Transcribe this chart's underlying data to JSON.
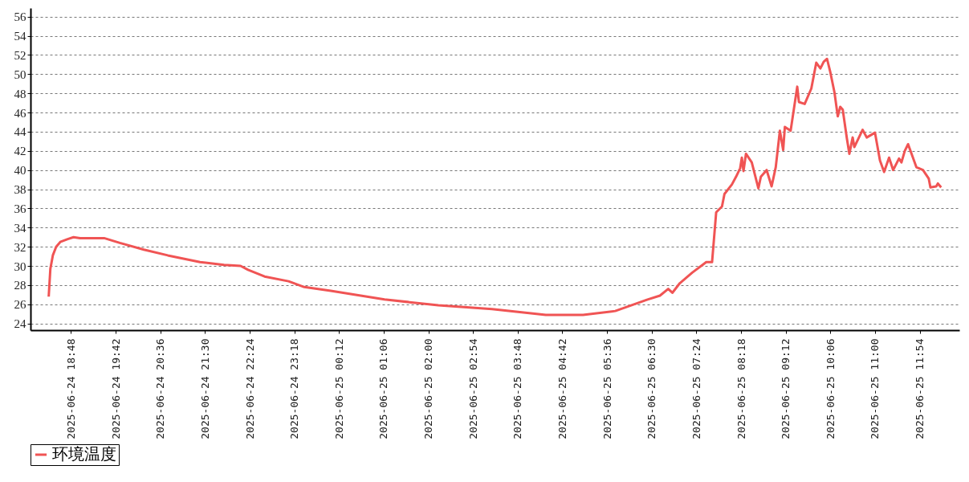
{
  "chart_data": {
    "type": "line",
    "x": [
      "2025-06-24T18:21",
      "2025-06-24T18:23",
      "2025-06-24T18:26",
      "2025-06-24T18:30",
      "2025-06-24T18:35",
      "2025-06-24T18:44",
      "2025-06-24T18:51",
      "2025-06-24T18:59",
      "2025-06-24T19:28",
      "2025-06-24T19:47",
      "2025-06-24T20:16",
      "2025-06-24T20:45",
      "2025-06-24T21:24",
      "2025-06-24T21:53",
      "2025-06-24T22:13",
      "2025-06-24T22:22",
      "2025-06-24T22:42",
      "2025-06-24T23:11",
      "2025-06-24T23:30",
      "2025-06-25T00:02",
      "2025-06-25T01:07",
      "2025-06-25T02:12",
      "2025-06-25T03:17",
      "2025-06-25T04:22",
      "2025-06-25T05:07",
      "2025-06-25T05:46",
      "2025-06-25T05:59",
      "2025-06-25T06:25",
      "2025-06-25T06:40",
      "2025-06-25T06:50",
      "2025-06-25T06:55",
      "2025-06-25T07:04",
      "2025-06-25T07:19",
      "2025-06-25T07:36",
      "2025-06-25T07:43",
      "2025-06-25T07:48",
      "2025-06-25T07:55",
      "2025-06-25T07:58",
      "2025-06-25T08:07",
      "2025-06-25T08:12",
      "2025-06-25T08:17",
      "2025-06-25T08:19",
      "2025-06-25T08:21",
      "2025-06-25T08:24",
      "2025-06-25T08:31",
      "2025-06-25T08:39",
      "2025-06-25T08:42",
      "2025-06-25T08:49",
      "2025-06-25T08:55",
      "2025-06-25T09:00",
      "2025-06-25T09:05",
      "2025-06-25T09:09",
      "2025-06-25T09:11",
      "2025-06-25T09:18",
      "2025-06-25T09:26",
      "2025-06-25T09:28",
      "2025-06-25T09:35",
      "2025-06-25T09:43",
      "2025-06-25T09:49",
      "2025-06-25T09:54",
      "2025-06-25T09:58",
      "2025-06-25T10:02",
      "2025-06-25T10:06",
      "2025-06-25T10:11",
      "2025-06-25T10:15",
      "2025-06-25T10:18",
      "2025-06-25T10:21",
      "2025-06-25T10:26",
      "2025-06-25T10:29",
      "2025-06-25T10:33",
      "2025-06-25T10:35",
      "2025-06-25T10:45",
      "2025-06-25T10:50",
      "2025-06-25T11:00",
      "2025-06-25T11:06",
      "2025-06-25T11:11",
      "2025-06-25T11:17",
      "2025-06-25T11:22",
      "2025-06-25T11:29",
      "2025-06-25T11:32",
      "2025-06-25T11:36",
      "2025-06-25T11:40",
      "2025-06-25T11:50",
      "2025-06-25T11:58",
      "2025-06-25T12:05",
      "2025-06-25T12:07",
      "2025-06-25T12:14",
      "2025-06-25T12:16",
      "2025-06-25T12:20"
    ],
    "series": [
      {
        "name": "环境温度",
        "color": "#f05454",
        "values": [
          26.8,
          29.7,
          31.1,
          32.0,
          32.5,
          32.8,
          33.0,
          32.9,
          32.9,
          32.4,
          31.7,
          31.1,
          30.4,
          30.1,
          30.0,
          29.6,
          28.9,
          28.4,
          27.8,
          27.4,
          26.5,
          25.9,
          25.5,
          24.9,
          24.9,
          25.3,
          25.7,
          26.5,
          26.9,
          27.6,
          27.2,
          28.2,
          29.3,
          30.4,
          30.4,
          35.6,
          36.2,
          37.5,
          38.5,
          39.3,
          40.2,
          41.3,
          39.9,
          41.7,
          40.8,
          38.1,
          39.3,
          40.0,
          38.3,
          40.3,
          44.1,
          42.1,
          44.5,
          44.1,
          48.7,
          47.1,
          46.9,
          48.5,
          51.2,
          50.6,
          51.3,
          51.6,
          50.2,
          48.1,
          45.6,
          46.6,
          46.3,
          43.3,
          41.7,
          43.4,
          42.4,
          44.2,
          43.4,
          43.9,
          41.0,
          39.8,
          41.3,
          40.0,
          41.2,
          40.8,
          42.0,
          42.7,
          40.3,
          40.0,
          39.1,
          38.2,
          38.3,
          38.6,
          38.2
        ]
      }
    ],
    "xlim": [
      "2025-06-24T17:59",
      "2025-06-25T12:42"
    ],
    "xticks": [
      {
        "value": "2025-06-24T18:48",
        "label": "2025-06-24 18:48"
      },
      {
        "value": "2025-06-24T19:42",
        "label": "2025-06-24 19:42"
      },
      {
        "value": "2025-06-24T20:36",
        "label": "2025-06-24 20:36"
      },
      {
        "value": "2025-06-24T21:30",
        "label": "2025-06-24 21:30"
      },
      {
        "value": "2025-06-24T22:24",
        "label": "2025-06-24 22:24"
      },
      {
        "value": "2025-06-24T23:18",
        "label": "2025-06-24 23:18"
      },
      {
        "value": "2025-06-25T00:12",
        "label": "2025-06-25 00:12"
      },
      {
        "value": "2025-06-25T01:06",
        "label": "2025-06-25 01:06"
      },
      {
        "value": "2025-06-25T02:00",
        "label": "2025-06-25 02:00"
      },
      {
        "value": "2025-06-25T02:54",
        "label": "2025-06-25 02:54"
      },
      {
        "value": "2025-06-25T03:48",
        "label": "2025-06-25 03:48"
      },
      {
        "value": "2025-06-25T04:42",
        "label": "2025-06-25 04:42"
      },
      {
        "value": "2025-06-25T05:36",
        "label": "2025-06-25 05:36"
      },
      {
        "value": "2025-06-25T06:30",
        "label": "2025-06-25 06:30"
      },
      {
        "value": "2025-06-25T07:24",
        "label": "2025-06-25 07:24"
      },
      {
        "value": "2025-06-25T08:18",
        "label": "2025-06-25 08:18"
      },
      {
        "value": "2025-06-25T09:12",
        "label": "2025-06-25 09:12"
      },
      {
        "value": "2025-06-25T10:06",
        "label": "2025-06-25 10:06"
      },
      {
        "value": "2025-06-25T11:00",
        "label": "2025-06-25 11:00"
      },
      {
        "value": "2025-06-25T11:54",
        "label": "2025-06-25 11:54"
      }
    ],
    "ylim": [
      23.3,
      56.9
    ],
    "yticks": [
      24,
      26,
      28,
      30,
      32,
      34,
      36,
      38,
      40,
      42,
      44,
      46,
      48,
      50,
      52,
      54,
      56
    ],
    "grid": "y",
    "legend": "bottom",
    "marker": "none",
    "line_style": "solid"
  }
}
